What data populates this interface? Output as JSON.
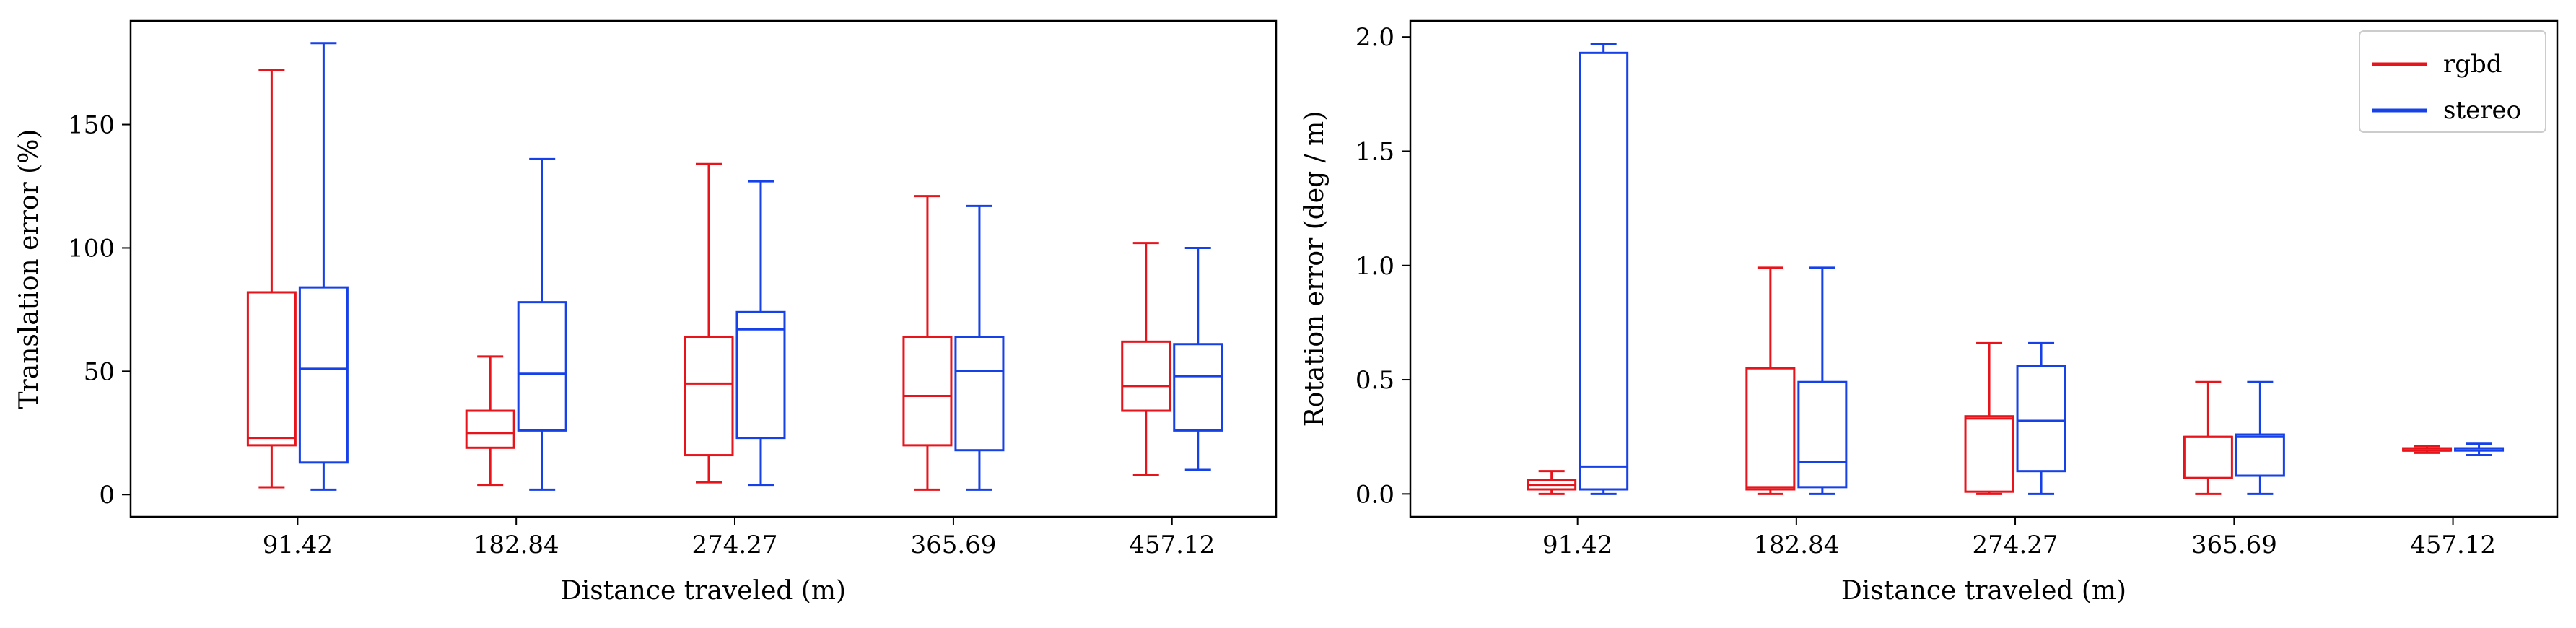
{
  "colors": {
    "rgbd": "#e8141c",
    "stereo": "#1640e8"
  },
  "chart_data": [
    {
      "type": "box",
      "xlabel": "Distance traveled (m)",
      "ylabel": "Translation error (%)",
      "ylim": [
        -9,
        192
      ],
      "yticks": [
        0,
        50,
        100,
        150
      ],
      "yticklabels": [
        "0",
        "50",
        "100",
        "150"
      ],
      "categories": [
        "91.42",
        "182.84",
        "274.27",
        "365.69",
        "457.12"
      ],
      "legend": null,
      "series": [
        {
          "name": "rgbd",
          "color_key": "rgbd",
          "boxes": [
            {
              "whislo": 3,
              "q1": 20,
              "med": 23,
              "q3": 82,
              "whishi": 172
            },
            {
              "whislo": 4,
              "q1": 19,
              "med": 25,
              "q3": 34,
              "whishi": 56
            },
            {
              "whislo": 5,
              "q1": 16,
              "med": 45,
              "q3": 64,
              "whishi": 134
            },
            {
              "whislo": 2,
              "q1": 20,
              "med": 40,
              "q3": 64,
              "whishi": 121
            },
            {
              "whislo": 8,
              "q1": 34,
              "med": 44,
              "q3": 62,
              "whishi": 102
            }
          ]
        },
        {
          "name": "stereo",
          "color_key": "stereo",
          "boxes": [
            {
              "whislo": 2,
              "q1": 13,
              "med": 51,
              "q3": 84,
              "whishi": 183
            },
            {
              "whislo": 2,
              "q1": 26,
              "med": 49,
              "q3": 78,
              "whishi": 136
            },
            {
              "whislo": 4,
              "q1": 23,
              "med": 67,
              "q3": 74,
              "whishi": 127
            },
            {
              "whislo": 2,
              "q1": 18,
              "med": 50,
              "q3": 64,
              "whishi": 117
            },
            {
              "whislo": 10,
              "q1": 26,
              "med": 48,
              "q3": 61,
              "whishi": 100
            }
          ]
        }
      ]
    },
    {
      "type": "box",
      "xlabel": "Distance traveled (m)",
      "ylabel": "Rotation error (deg / m)",
      "ylim": [
        -0.1,
        2.07
      ],
      "yticks": [
        0,
        0.5,
        1.0,
        1.5,
        2.0
      ],
      "yticklabels": [
        "0.0",
        "0.5",
        "1.0",
        "1.5",
        "2.0"
      ],
      "categories": [
        "91.42",
        "182.84",
        "274.27",
        "365.69",
        "457.12"
      ],
      "legend": {
        "placement": "top-right",
        "entries": [
          "rgbd",
          "stereo"
        ]
      },
      "series": [
        {
          "name": "rgbd",
          "color_key": "rgbd",
          "boxes": [
            {
              "whislo": 0.0,
              "q1": 0.02,
              "med": 0.04,
              "q3": 0.06,
              "whishi": 0.1
            },
            {
              "whislo": 0.0,
              "q1": 0.02,
              "med": 0.03,
              "q3": 0.55,
              "whishi": 0.99
            },
            {
              "whislo": 0.0,
              "q1": 0.01,
              "med": 0.33,
              "q3": 0.34,
              "whishi": 0.66
            },
            {
              "whislo": 0.0,
              "q1": 0.07,
              "med": 0.25,
              "q3": 0.25,
              "whishi": 0.49
            },
            {
              "whislo": 0.18,
              "q1": 0.19,
              "med": 0.19,
              "q3": 0.2,
              "whishi": 0.21
            }
          ]
        },
        {
          "name": "stereo",
          "color_key": "stereo",
          "boxes": [
            {
              "whislo": 0.0,
              "q1": 0.02,
              "med": 0.12,
              "q3": 1.93,
              "whishi": 1.97
            },
            {
              "whislo": 0.0,
              "q1": 0.03,
              "med": 0.14,
              "q3": 0.49,
              "whishi": 0.99
            },
            {
              "whislo": 0.0,
              "q1": 0.1,
              "med": 0.32,
              "q3": 0.56,
              "whishi": 0.66
            },
            {
              "whislo": 0.0,
              "q1": 0.08,
              "med": 0.25,
              "q3": 0.26,
              "whishi": 0.49
            },
            {
              "whislo": 0.17,
              "q1": 0.19,
              "med": 0.2,
              "q3": 0.2,
              "whishi": 0.22
            }
          ]
        }
      ]
    }
  ]
}
